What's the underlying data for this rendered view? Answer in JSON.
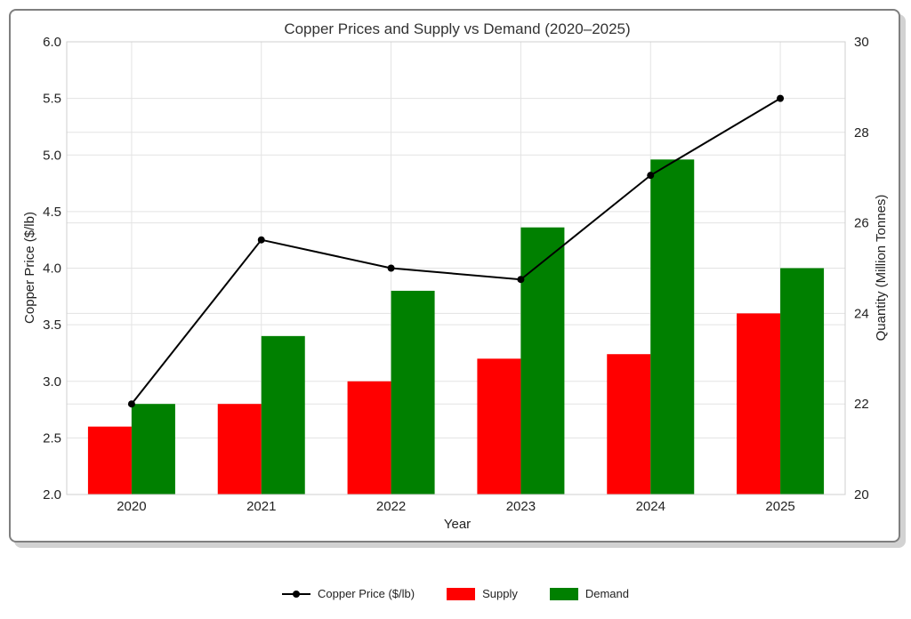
{
  "chart_data": {
    "type": "bar",
    "title": "Copper Prices and Supply vs Demand (2020–2025)",
    "xlabel": "Year",
    "ylabel_left": "Copper Price ($/lb)",
    "ylabel_right": "Quantity (Million Tonnes)",
    "categories": [
      "2020",
      "2021",
      "2022",
      "2023",
      "2024",
      "2025"
    ],
    "ylim_left": [
      2.0,
      6.0
    ],
    "yticks_left": [
      "2.0",
      "2.5",
      "3.0",
      "3.5",
      "4.0",
      "4.5",
      "5.0",
      "5.5",
      "6.0"
    ],
    "ylim_right": [
      20,
      30
    ],
    "yticks_right": [
      "20",
      "22",
      "24",
      "26",
      "28",
      "30"
    ],
    "grid": true,
    "legend_position": "bottom-center",
    "series": [
      {
        "name": "Copper Price ($/lb)",
        "type": "line",
        "axis": "left",
        "color": "#000000",
        "values": [
          2.8,
          4.25,
          4.0,
          3.9,
          4.82,
          5.5
        ]
      },
      {
        "name": "Supply",
        "type": "bar",
        "axis": "right",
        "color": "#ff0000",
        "values": [
          21.5,
          22.0,
          22.5,
          23.0,
          23.1,
          24.0
        ]
      },
      {
        "name": "Demand",
        "type": "bar",
        "axis": "right",
        "color": "#008000",
        "values": [
          22.0,
          23.5,
          24.5,
          25.9,
          27.4,
          25.0
        ]
      }
    ]
  }
}
